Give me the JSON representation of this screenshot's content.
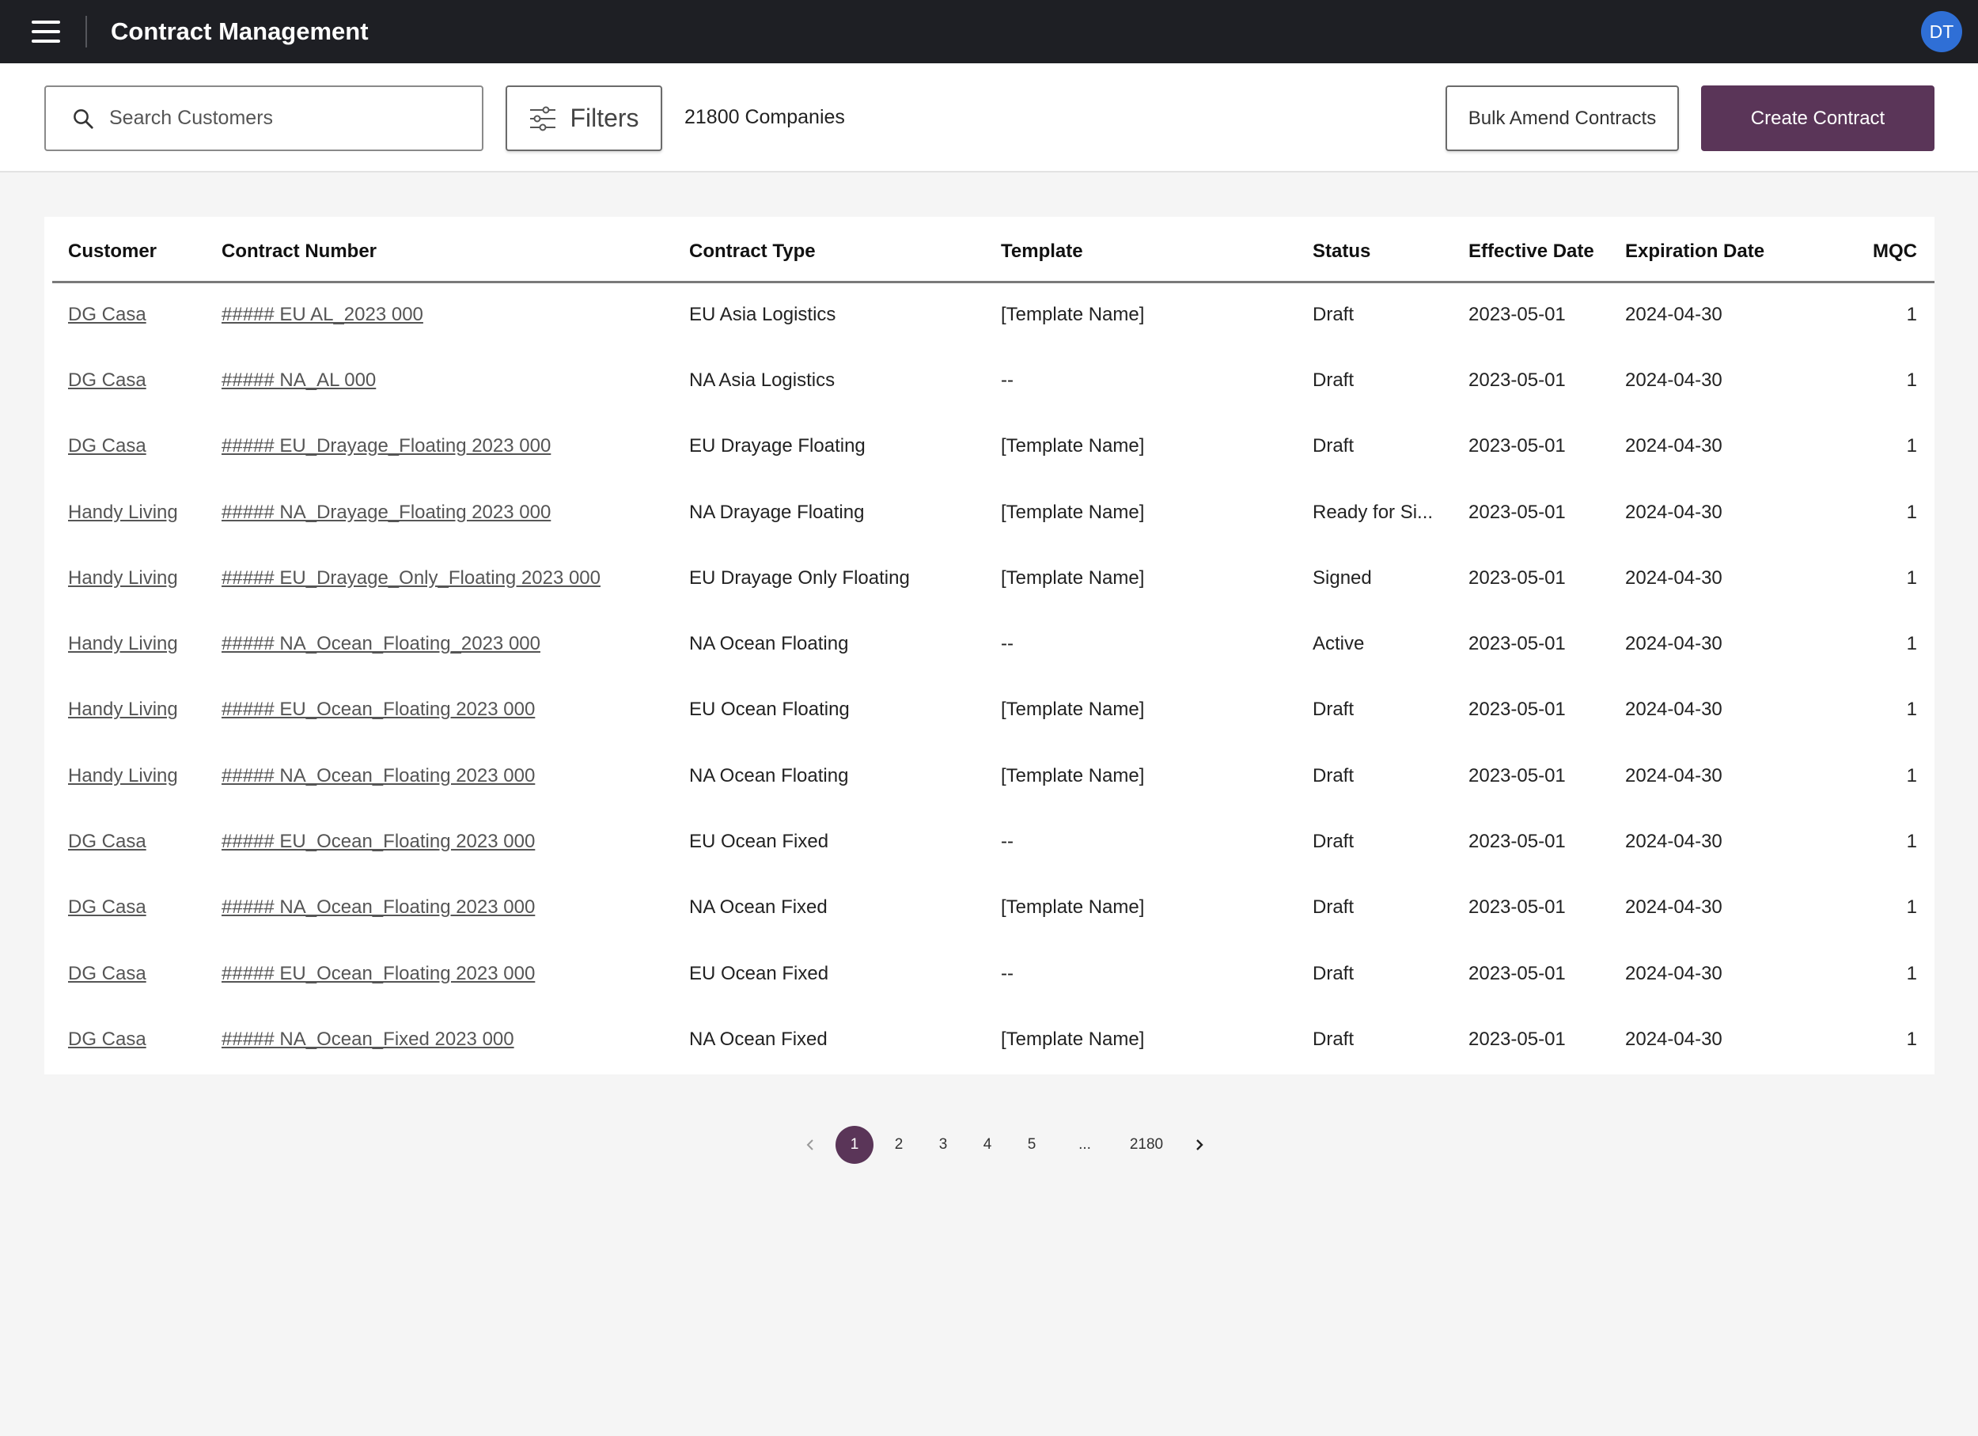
{
  "header": {
    "title": "Contract Management",
    "avatar_initials": "DT"
  },
  "toolbar": {
    "search_placeholder": "Search Customers",
    "filters_label": "Filters",
    "company_count": "21800 Companies",
    "bulk_label": "Bulk Amend Contracts",
    "create_label": "Create Contract"
  },
  "table": {
    "columns": [
      "Customer",
      "Contract Number",
      "Contract Type",
      "Template",
      "Status",
      "Effective Date",
      "Expiration Date",
      "MQC"
    ],
    "rows": [
      [
        "DG Casa",
        "##### EU AL_2023 000",
        "EU Asia Logistics",
        "[Template Name]",
        "Draft",
        "2023-05-01",
        "2024-04-30",
        "1"
      ],
      [
        "DG Casa",
        "##### NA_AL 000",
        "NA Asia Logistics",
        "--",
        "Draft",
        "2023-05-01",
        "2024-04-30",
        "1"
      ],
      [
        "DG Casa",
        "##### EU_Drayage_Floating 2023 000",
        "EU Drayage Floating",
        "[Template Name]",
        "Draft",
        "2023-05-01",
        "2024-04-30",
        "1"
      ],
      [
        "Handy Living",
        "##### NA_Drayage_Floating 2023 000",
        "NA Drayage Floating",
        "[Template Name]",
        "Ready for Si...",
        "2023-05-01",
        "2024-04-30",
        "1"
      ],
      [
        "Handy Living",
        "##### EU_Drayage_Only_Floating 2023 000",
        "EU Drayage Only Floating",
        "[Template Name]",
        "Signed",
        "2023-05-01",
        "2024-04-30",
        "1"
      ],
      [
        "Handy Living",
        "##### NA_Ocean_Floating_2023 000",
        "NA Ocean Floating",
        "--",
        "Active",
        "2023-05-01",
        "2024-04-30",
        "1"
      ],
      [
        "Handy Living",
        "##### EU_Ocean_Floating 2023 000",
        "EU Ocean Floating",
        "[Template Name]",
        "Draft",
        "2023-05-01",
        "2024-04-30",
        "1"
      ],
      [
        "Handy Living",
        "##### NA_Ocean_Floating 2023 000",
        "NA Ocean Floating",
        "[Template Name]",
        "Draft",
        "2023-05-01",
        "2024-04-30",
        "1"
      ],
      [
        "DG Casa",
        "##### EU_Ocean_Floating 2023 000",
        "EU Ocean Fixed",
        "--",
        "Draft",
        "2023-05-01",
        "2024-04-30",
        "1"
      ],
      [
        "DG Casa",
        "##### NA_Ocean_Floating 2023 000",
        "NA Ocean Fixed",
        "[Template Name]",
        "Draft",
        "2023-05-01",
        "2024-04-30",
        "1"
      ],
      [
        "DG Casa",
        "##### EU_Ocean_Floating 2023 000",
        "EU Ocean Fixed",
        "--",
        "Draft",
        "2023-05-01",
        "2024-04-30",
        "1"
      ],
      [
        "DG Casa",
        "##### NA_Ocean_Fixed 2023 000",
        "NA Ocean Fixed",
        "[Template Name]",
        "Draft",
        "2023-05-01",
        "2024-04-30",
        "1"
      ]
    ]
  },
  "pagination": {
    "pages": [
      "1",
      "2",
      "3",
      "4",
      "5",
      "...",
      "2180"
    ],
    "current": "1"
  },
  "colors": {
    "accent": "#5a3558",
    "topbar": "#1e1f24",
    "avatar": "#2f6fd6"
  },
  "icons": {
    "menu": "hamburger-menu-icon",
    "search": "search-icon",
    "filters": "sliders-icon",
    "prev": "chevron-left-icon",
    "next": "chevron-right-icon"
  }
}
